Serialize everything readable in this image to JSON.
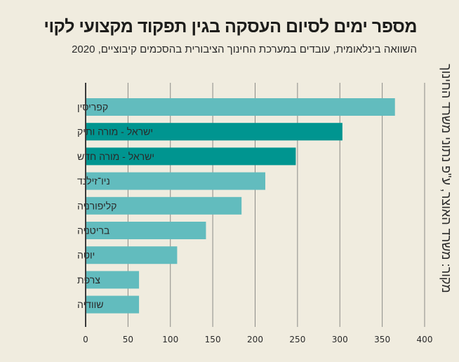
{
  "title": "מספר ימים לסיום העסקה בגין תפקוד מקצועי לקוי",
  "subtitle": "השוואה בינלאומית, עובדים במערכת החינוך הציבורית בהסכמים קיבוציים, 2020",
  "source": "מקור: משרד האוצר, ע\"פ נתוני משרד החינוך",
  "colors": {
    "light": "#62bcbe",
    "dark": "#009590",
    "background": "#f0ecdf",
    "axis": "#3a3a3a",
    "grid": "#8a8a86"
  },
  "chart_data": {
    "type": "bar",
    "orientation": "horizontal",
    "title": "מספר ימים לסיום העסקה בגין תפקוד מקצועי לקוי",
    "subtitle": "השוואה בינלאומית, עובדים במערכת החינוך הציבורית בהסכמים קיבוציים, 2020",
    "categories": [
      "קפריסין",
      "ישראל - מורה ותיק",
      "ישראל - מורה חדש",
      "ניו־זילנד",
      "קליפורניה",
      "בריטניה",
      "יוטה",
      "צרפת",
      "שוודיה"
    ],
    "values": [
      365,
      303,
      248,
      212,
      184,
      142,
      108,
      63,
      63
    ],
    "highlight": [
      false,
      true,
      true,
      false,
      false,
      false,
      false,
      false,
      false
    ],
    "xlabel": "",
    "ylabel": "",
    "xlim": [
      0,
      400
    ],
    "xticks": [
      0,
      50,
      100,
      150,
      200,
      250,
      300,
      350,
      400
    ],
    "grid": true,
    "legend": "none"
  }
}
